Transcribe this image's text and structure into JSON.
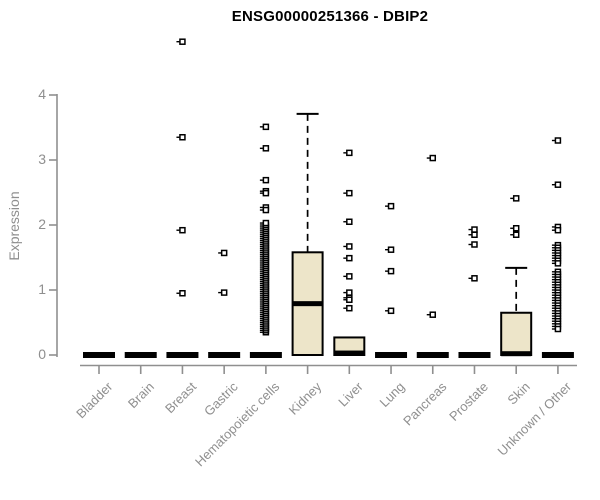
{
  "chart_data": {
    "type": "boxplot",
    "title": "ENSG00000251366 - DBIP2",
    "ylabel": "Expression",
    "xlabel": "",
    "ylim": [
      0,
      4
    ],
    "yticks": [
      0,
      1,
      2,
      3,
      4
    ],
    "grid": false,
    "legend": null,
    "categories": [
      "Bladder",
      "Brain",
      "Breast",
      "Gastric",
      "Hematopoietic cells",
      "Kidney",
      "Liver",
      "Lung",
      "Pancreas",
      "Prostate",
      "Skin",
      "Unknown / Other"
    ],
    "boxes": [
      {
        "name": "Bladder",
        "q1": 0,
        "median": 0,
        "q3": 0,
        "whisker_low": 0,
        "whisker_high": 0,
        "outliers": []
      },
      {
        "name": "Brain",
        "q1": 0,
        "median": 0,
        "q3": 0,
        "whisker_low": 0,
        "whisker_high": 0,
        "outliers": []
      },
      {
        "name": "Breast",
        "q1": 0,
        "median": 0,
        "q3": 0,
        "whisker_low": 0,
        "whisker_high": 0,
        "outliers": [
          4.82,
          3.35,
          1.92,
          0.95
        ]
      },
      {
        "name": "Gastric",
        "q1": 0,
        "median": 0,
        "q3": 0,
        "whisker_low": 0,
        "whisker_high": 0,
        "outliers": [
          1.57,
          0.96
        ]
      },
      {
        "name": "Hematopoietic cells",
        "q1": 0,
        "median": 0,
        "q3": 0,
        "whisker_low": 0,
        "whisker_high": 0,
        "outliers": [
          3.51,
          3.18,
          2.69,
          2.52,
          2.49,
          2.27,
          2.23,
          0.35,
          0.38,
          0.41,
          0.44,
          0.47,
          0.5,
          0.53,
          0.56,
          0.59,
          0.62,
          0.65,
          0.68,
          0.71,
          0.74,
          0.77,
          0.8,
          0.83,
          0.86,
          0.89,
          0.92,
          0.95,
          0.98,
          1.01,
          1.04,
          1.07,
          1.1,
          1.13,
          1.16,
          1.19,
          1.22,
          1.25,
          1.28,
          1.31,
          1.34,
          1.37,
          1.4,
          1.43,
          1.46,
          1.49,
          1.52,
          1.55,
          1.58,
          1.61,
          1.64,
          1.67,
          1.7,
          1.73,
          1.76,
          1.79,
          1.82,
          1.85,
          1.88,
          1.91,
          1.94,
          1.97,
          2.0,
          2.03
        ]
      },
      {
        "name": "Kidney",
        "q1": 0,
        "median": 0.79,
        "q3": 1.58,
        "whisker_low": 0,
        "whisker_high": 3.71,
        "outliers": []
      },
      {
        "name": "Liver",
        "q1": 0,
        "median": 0.03,
        "q3": 0.27,
        "whisker_low": 0,
        "whisker_high": 0.27,
        "outliers": [
          3.11,
          2.49,
          2.05,
          1.67,
          1.49,
          1.21,
          0.96,
          0.88,
          0.85,
          0.72
        ]
      },
      {
        "name": "Lung",
        "q1": 0,
        "median": 0,
        "q3": 0,
        "whisker_low": 0,
        "whisker_high": 0,
        "outliers": [
          2.29,
          1.62,
          1.29,
          0.68
        ]
      },
      {
        "name": "Pancreas",
        "q1": 0,
        "median": 0,
        "q3": 0,
        "whisker_low": 0,
        "whisker_high": 0,
        "outliers": [
          3.03,
          0.62
        ]
      },
      {
        "name": "Prostate",
        "q1": 0,
        "median": 0,
        "q3": 0,
        "whisker_low": 0,
        "whisker_high": 0,
        "outliers": [
          1.93,
          1.85,
          1.7,
          1.18
        ]
      },
      {
        "name": "Skin",
        "q1": 0,
        "median": 0.02,
        "q3": 0.65,
        "whisker_low": 0,
        "whisker_high": 1.34,
        "outliers": [
          2.41,
          1.95,
          1.85
        ]
      },
      {
        "name": "Unknown / Other",
        "q1": 0,
        "median": 0,
        "q3": 0,
        "whisker_low": 0,
        "whisker_high": 0,
        "outliers": [
          3.3,
          2.62,
          1.97,
          1.92,
          1.69,
          1.65,
          1.61,
          1.57,
          1.53,
          1.49,
          1.45,
          1.41,
          1.28,
          1.24,
          1.2,
          1.16,
          1.12,
          1.08,
          1.04,
          1.0,
          0.96,
          0.92,
          0.88,
          0.84,
          0.8,
          0.76,
          0.72,
          0.68,
          0.64,
          0.6,
          0.56,
          0.52,
          0.48,
          0.44,
          0.4
        ]
      }
    ],
    "colors": {
      "box_fill": "#ede5c9",
      "box_stroke": "#000000",
      "median": "#000000",
      "outlier_stroke": "#000000",
      "outlier_fill": "#ffffff",
      "axis": "#8f8f8f",
      "tick_label": "#8f8f8f",
      "title": "#000000"
    }
  }
}
